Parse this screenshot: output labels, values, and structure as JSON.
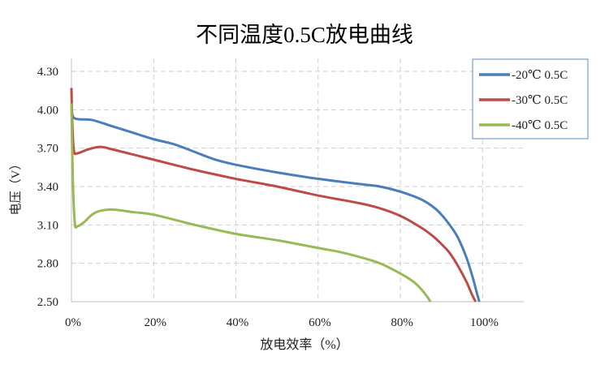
{
  "chart_data": {
    "type": "line",
    "title": "不同温度0.5C放电曲线",
    "xlabel": "放电效率（%）",
    "ylabel": "电压（V）",
    "xlim": [
      0,
      110
    ],
    "ylim": [
      2.5,
      4.3
    ],
    "x_ticks": [
      "0%",
      "20%",
      "40%",
      "60%",
      "80%",
      "100%"
    ],
    "x_tick_values": [
      0,
      20,
      40,
      60,
      80,
      100
    ],
    "y_ticks": [
      "2.50",
      "2.80",
      "3.10",
      "3.40",
      "3.70",
      "4.00",
      "4.30"
    ],
    "y_tick_values": [
      2.5,
      2.8,
      3.1,
      3.4,
      3.7,
      4.0,
      4.3
    ],
    "grid": true,
    "legend_position": "top-right",
    "series": [
      {
        "name": "-20℃ 0.5C",
        "color": "#4a7ebb",
        "points": [
          [
            0,
            4.0
          ],
          [
            0.5,
            3.94
          ],
          [
            2,
            3.925
          ],
          [
            5,
            3.92
          ],
          [
            10,
            3.87
          ],
          [
            15,
            3.82
          ],
          [
            20,
            3.77
          ],
          [
            25,
            3.73
          ],
          [
            30,
            3.67
          ],
          [
            35,
            3.61
          ],
          [
            40,
            3.57
          ],
          [
            50,
            3.51
          ],
          [
            60,
            3.46
          ],
          [
            70,
            3.42
          ],
          [
            75,
            3.4
          ],
          [
            80,
            3.36
          ],
          [
            85,
            3.3
          ],
          [
            88,
            3.24
          ],
          [
            90,
            3.18
          ],
          [
            92,
            3.1
          ],
          [
            94,
            3.0
          ],
          [
            96,
            2.85
          ],
          [
            97.5,
            2.7
          ],
          [
            98.5,
            2.58
          ],
          [
            99.2,
            2.5
          ]
        ]
      },
      {
        "name": "-30℃ 0.5C",
        "color": "#be4b48",
        "points": [
          [
            0,
            4.17
          ],
          [
            0.2,
            3.9
          ],
          [
            0.6,
            3.68
          ],
          [
            1.5,
            3.66
          ],
          [
            4,
            3.69
          ],
          [
            7,
            3.71
          ],
          [
            10,
            3.69
          ],
          [
            15,
            3.65
          ],
          [
            20,
            3.61
          ],
          [
            30,
            3.53
          ],
          [
            40,
            3.46
          ],
          [
            50,
            3.4
          ],
          [
            60,
            3.33
          ],
          [
            70,
            3.27
          ],
          [
            75,
            3.23
          ],
          [
            80,
            3.17
          ],
          [
            85,
            3.08
          ],
          [
            88,
            3.01
          ],
          [
            90,
            2.95
          ],
          [
            92,
            2.88
          ],
          [
            94,
            2.78
          ],
          [
            96,
            2.66
          ],
          [
            97.5,
            2.55
          ],
          [
            98.3,
            2.5
          ]
        ]
      },
      {
        "name": "-40℃ 0.5C",
        "color": "#98b954",
        "points": [
          [
            0,
            4.05
          ],
          [
            0.3,
            3.5
          ],
          [
            0.8,
            3.12
          ],
          [
            1.5,
            3.09
          ],
          [
            3,
            3.12
          ],
          [
            5,
            3.18
          ],
          [
            7,
            3.21
          ],
          [
            10,
            3.22
          ],
          [
            15,
            3.2
          ],
          [
            20,
            3.18
          ],
          [
            30,
            3.1
          ],
          [
            40,
            3.03
          ],
          [
            50,
            2.98
          ],
          [
            60,
            2.92
          ],
          [
            65,
            2.89
          ],
          [
            70,
            2.85
          ],
          [
            75,
            2.8
          ],
          [
            80,
            2.72
          ],
          [
            83,
            2.66
          ],
          [
            85,
            2.6
          ],
          [
            86.5,
            2.54
          ],
          [
            87.3,
            2.5
          ]
        ]
      }
    ]
  }
}
